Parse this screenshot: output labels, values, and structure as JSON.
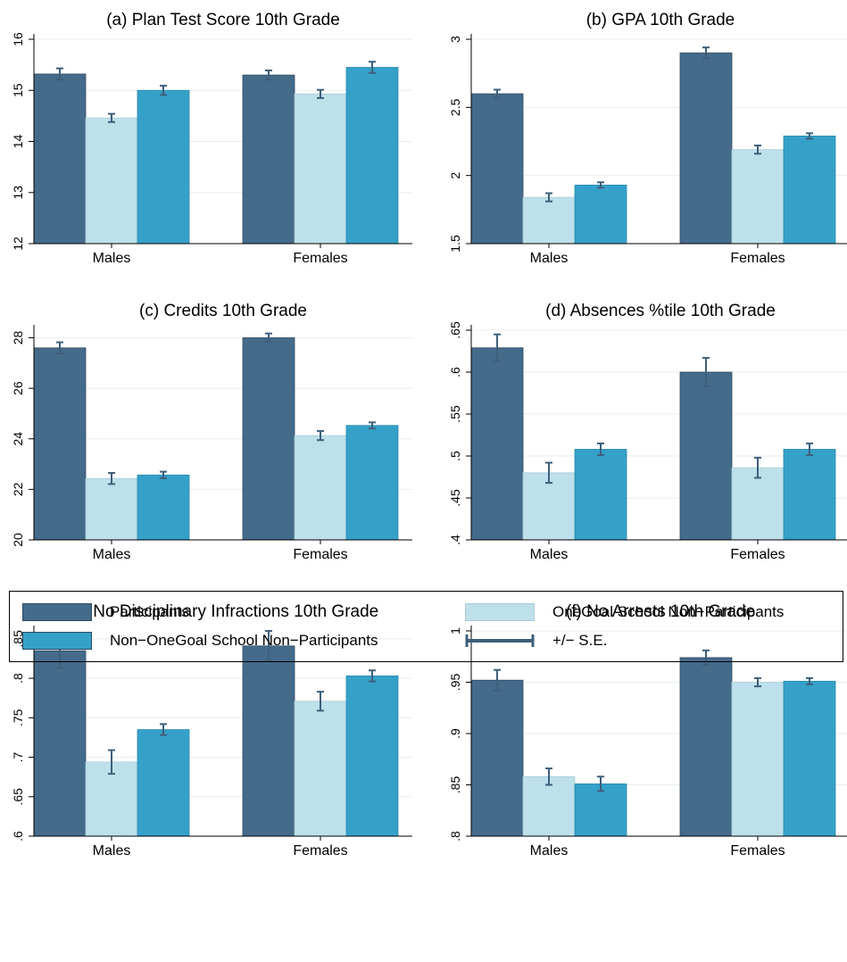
{
  "chart_data": [
    {
      "type": "bar",
      "title": "(a) Plan Test Score 10th Grade",
      "categories": [
        "Males",
        "Females"
      ],
      "ylim": [
        12,
        16
      ],
      "yticks": [
        12,
        13,
        14,
        15,
        16
      ],
      "ytick_labels": [
        "12",
        "13",
        "14",
        "15",
        "16"
      ],
      "series": [
        {
          "name": "Participants",
          "values": [
            15.32,
            15.3
          ],
          "se": [
            0.11,
            0.09
          ]
        },
        {
          "name": "OneGoal School Non−Participants",
          "values": [
            14.46,
            14.93
          ],
          "se": [
            0.08,
            0.08
          ]
        },
        {
          "name": "Non−OneGoal School Non−Participants",
          "values": [
            15.0,
            15.45
          ],
          "se": [
            0.09,
            0.11
          ]
        }
      ]
    },
    {
      "type": "bar",
      "title": "(b) GPA 10th Grade",
      "categories": [
        "Males",
        "Females"
      ],
      "ylim": [
        1.5,
        3
      ],
      "yticks": [
        1.5,
        2,
        2.5,
        3
      ],
      "ytick_labels": [
        "1.5",
        "2",
        "2.5",
        "3"
      ],
      "series": [
        {
          "name": "Participants",
          "values": [
            2.6,
            2.9
          ],
          "se": [
            0.03,
            0.04
          ]
        },
        {
          "name": "OneGoal School Non−Participants",
          "values": [
            1.84,
            2.19
          ],
          "se": [
            0.03,
            0.03
          ]
        },
        {
          "name": "Non−OneGoal School Non−Participants",
          "values": [
            1.93,
            2.29
          ],
          "se": [
            0.02,
            0.02
          ]
        }
      ]
    },
    {
      "type": "bar",
      "title": "(c) Credits 10th Grade",
      "categories": [
        "Males",
        "Females"
      ],
      "ylim": [
        20,
        28.3
      ],
      "yticks": [
        20,
        22,
        24,
        26,
        28
      ],
      "ytick_labels": [
        "20",
        "22",
        "24",
        "26",
        "28"
      ],
      "series": [
        {
          "name": "Participants",
          "values": [
            27.6,
            28.0
          ],
          "se": [
            0.22,
            0.17
          ]
        },
        {
          "name": "OneGoal School Non−Participants",
          "values": [
            22.43,
            24.13
          ],
          "se": [
            0.22,
            0.18
          ]
        },
        {
          "name": "Non−OneGoal School Non−Participants",
          "values": [
            22.57,
            24.53
          ],
          "se": [
            0.13,
            0.12
          ]
        }
      ]
    },
    {
      "type": "bar",
      "title": "(d) Absences %tile 10th Grade",
      "categories": [
        "Males",
        "Females"
      ],
      "ylim": [
        0.4,
        0.65
      ],
      "yticks": [
        0.4,
        0.45,
        0.5,
        0.55,
        0.6,
        0.65
      ],
      "ytick_labels": [
        ".4",
        ".45",
        ".5",
        ".55",
        ".6",
        ".65"
      ],
      "series": [
        {
          "name": "Participants",
          "values": [
            0.629,
            0.6
          ],
          "se": [
            0.016,
            0.017
          ]
        },
        {
          "name": "OneGoal School Non−Participants",
          "values": [
            0.48,
            0.486
          ],
          "se": [
            0.012,
            0.012
          ]
        },
        {
          "name": "Non−OneGoal School Non−Participants",
          "values": [
            0.508,
            0.508
          ],
          "se": [
            0.007,
            0.007
          ]
        }
      ]
    },
    {
      "type": "bar",
      "title": "(e) No Disciplinary Infractions 10th Grade",
      "categories": [
        "Males",
        "Females"
      ],
      "ylim": [
        0.6,
        0.86
      ],
      "yticks": [
        0.6,
        0.65,
        0.7,
        0.75,
        0.8,
        0.85
      ],
      "ytick_labels": [
        ".6",
        ".65",
        ".7",
        ".75",
        ".8",
        ".85"
      ],
      "series": [
        {
          "name": "Participants",
          "values": [
            0.835,
            0.841
          ],
          "se": [
            0.022,
            0.019
          ]
        },
        {
          "name": "OneGoal School Non−Participants",
          "values": [
            0.694,
            0.771
          ],
          "se": [
            0.015,
            0.012
          ]
        },
        {
          "name": "Non−OneGoal School Non−Participants",
          "values": [
            0.735,
            0.803
          ],
          "se": [
            0.007,
            0.007
          ]
        }
      ]
    },
    {
      "type": "bar",
      "title": "(f) No Arrests 10th Grade",
      "categories": [
        "Males",
        "Females"
      ],
      "ylim": [
        0.8,
        1.0
      ],
      "yticks": [
        0.8,
        0.85,
        0.9,
        0.95,
        1.0
      ],
      "ytick_labels": [
        ".8",
        ".85",
        ".9",
        ".95",
        "1"
      ],
      "series": [
        {
          "name": "Participants",
          "values": [
            0.952,
            0.974
          ],
          "se": [
            0.01,
            0.007
          ]
        },
        {
          "name": "OneGoal School Non−Participants",
          "values": [
            0.858,
            0.95
          ],
          "se": [
            0.008,
            0.004
          ]
        },
        {
          "name": "Non−OneGoal School Non−Participants",
          "values": [
            0.851,
            0.951
          ],
          "se": [
            0.007,
            0.003
          ]
        }
      ]
    }
  ],
  "legend": {
    "items": [
      {
        "label": "Participants",
        "color": "#456b8b",
        "kind": "bar"
      },
      {
        "label": "OneGoal School Non−Participants",
        "color": "#bde0ea",
        "kind": "bar"
      },
      {
        "label": "Non−OneGoal School Non−Participants",
        "color": "#35a1c9",
        "kind": "bar"
      },
      {
        "label": "+/− S.E.",
        "color": "#3e5f7a",
        "kind": "errorbar"
      }
    ]
  },
  "colors": {
    "participants": "#456b8b",
    "onegoal_nonparticipants": "#bde0ea",
    "nononegoal_nonparticipants": "#35a1c9",
    "error_bar": "#3e5f7a",
    "grid": "#e8eef1"
  }
}
